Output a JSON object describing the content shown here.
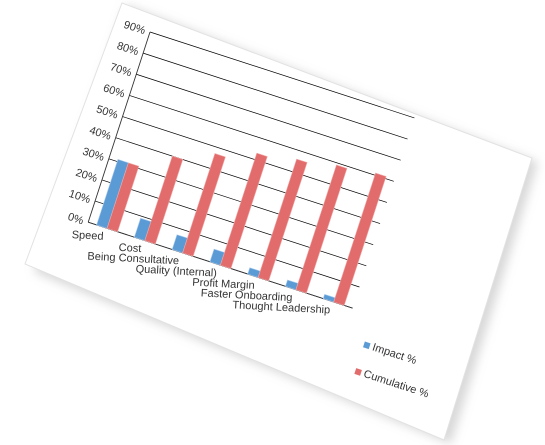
{
  "colors": {
    "impact": "#5b9bd5",
    "impact_light": "#a9cbef",
    "cumulative": "#e26b6b",
    "cumulative_light": "#f1a8a8",
    "axis": "#333333",
    "grid": "#000000"
  },
  "chart_data": {
    "type": "bar",
    "categories": [
      "Speed",
      "Cost",
      "Being Consultative",
      "Quality (Internal)",
      "Profit Margin",
      "Faster Onboarding",
      "Thought Leadership"
    ],
    "series": [
      {
        "name": "Impact %",
        "values": [
          31,
          9,
          7,
          6,
          3,
          3,
          2
        ]
      },
      {
        "name": "Cumulative %",
        "values": [
          31,
          40,
          47,
          53,
          56,
          59,
          61
        ]
      }
    ],
    "yticks": [
      "0%",
      "10%",
      "20%",
      "30%",
      "40%",
      "50%",
      "60%",
      "70%",
      "80%",
      "90%"
    ],
    "ylim": [
      0,
      90
    ],
    "grid": true,
    "legend": "right"
  }
}
